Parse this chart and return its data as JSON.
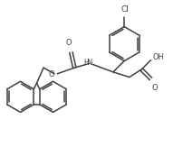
{
  "bg_color": "#ffffff",
  "line_color": "#404040",
  "line_width": 1.1,
  "font_size": 6.0,
  "fig_width": 1.91,
  "fig_height": 1.73,
  "dpi": 100,
  "xlim": [
    0,
    10
  ],
  "ylim": [
    0,
    9
  ]
}
